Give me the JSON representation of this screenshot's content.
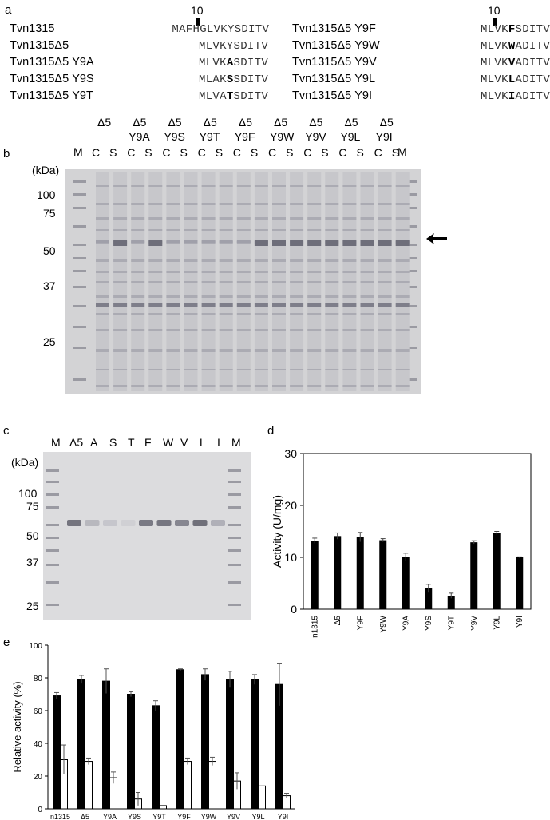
{
  "panel_a": {
    "label": "a",
    "marker": "10",
    "rows_left": [
      {
        "name": "Tvn1315",
        "pre": "MAFHGLVKY",
        "mut": "",
        "post": "SDITV"
      },
      {
        "name": "Tvn1315Δ5",
        "pre": "MLVKY",
        "mut": "",
        "post": "SDITV"
      },
      {
        "name": "Tvn1315Δ5 Y9A",
        "pre": "MLVK",
        "mut": "A",
        "post": "SDITV"
      },
      {
        "name": "Tvn1315Δ5 Y9S",
        "pre": "MLAK",
        "mut": "S",
        "post": "SDITV"
      },
      {
        "name": "Tvn1315Δ5 Y9T",
        "pre": "MLVA",
        "mut": "T",
        "post": "SDITV"
      }
    ],
    "rows_right": [
      {
        "name": "Tvn1315Δ5 Y9F",
        "pre": "MLVK",
        "mut": "F",
        "post": "SDITV"
      },
      {
        "name": "Tvn1315Δ5 Y9W",
        "pre": "MLVK",
        "mut": "W",
        "post": "ADITV"
      },
      {
        "name": "Tvn1315Δ5 Y9V",
        "pre": "MLVK",
        "mut": "V",
        "post": "ADITV"
      },
      {
        "name": "Tvn1315Δ5 Y9L",
        "pre": "MLVK",
        "mut": "L",
        "post": "ADITV"
      },
      {
        "name": "Tvn1315Δ5 Y9I",
        "pre": "MLVK",
        "mut": "I",
        "post": "ADITV"
      }
    ]
  },
  "panel_b": {
    "label": "b",
    "kda": "(kDa)",
    "marker_lane": "M",
    "groups": [
      {
        "top": "Δ5",
        "sub": ""
      },
      {
        "top": "Δ5",
        "sub": "Y9A"
      },
      {
        "top": "Δ5",
        "sub": "Y9S"
      },
      {
        "top": "Δ5",
        "sub": "Y9T"
      },
      {
        "top": "Δ5",
        "sub": "Y9F"
      },
      {
        "top": "Δ5",
        "sub": "Y9W"
      },
      {
        "top": "Δ5",
        "sub": "Y9V"
      },
      {
        "top": "Δ5",
        "sub": "Y9L"
      },
      {
        "top": "Δ5",
        "sub": "Y9I"
      }
    ],
    "fraction_labels": [
      "C",
      "S"
    ],
    "mw": [
      "100",
      "75",
      "50",
      "37",
      "25"
    ]
  },
  "panel_c": {
    "label": "c",
    "kda": "(kDa)",
    "lanes": [
      "M",
      "Δ5",
      "A",
      "S",
      "T",
      "F",
      "W",
      "V",
      "L",
      "I",
      "M"
    ],
    "mw": [
      "100",
      "75",
      "50",
      "37",
      "25"
    ]
  },
  "chart_data": [
    {
      "panel": "d",
      "type": "bar",
      "categories": [
        "n1315",
        "Δ5",
        "Y9F",
        "Y9W",
        "Y9A",
        "Y9S",
        "Y9T",
        "Y9V",
        "Y9L",
        "Y9I"
      ],
      "values": [
        13.2,
        14.1,
        13.9,
        13.3,
        10.1,
        4.0,
        2.6,
        12.9,
        14.7,
        10.0
      ],
      "errors": [
        0.5,
        0.6,
        0.9,
        0.3,
        0.7,
        0.8,
        0.5,
        0.3,
        0.3,
        0.1
      ],
      "ylabel": "Activity (U/mg)",
      "ylim": [
        0,
        30
      ],
      "yticks": [
        "0",
        "10",
        "20",
        "30"
      ],
      "color": "#000000"
    },
    {
      "panel": "e",
      "type": "bar",
      "categories": [
        "n1315",
        "Δ5",
        "Y9A",
        "Y9S",
        "Y9T",
        "Y9F",
        "Y9W",
        "Y9V",
        "Y9L",
        "Y9I"
      ],
      "series": [
        {
          "values": [
            69,
            79,
            78,
            70,
            63,
            85,
            82,
            79,
            79,
            76
          ],
          "errors": [
            2,
            2.5,
            7.5,
            1.5,
            3,
            0.5,
            3.5,
            5,
            3,
            13
          ],
          "color": "#000000"
        },
        {
          "values": [
            30,
            29,
            19,
            6,
            2,
            29,
            29,
            17,
            14,
            8
          ],
          "errors": [
            9,
            2,
            3.5,
            4,
            0,
            2,
            2.5,
            5,
            0,
            1.5
          ],
          "color": "#ffffff"
        }
      ],
      "ylabel": "Relative activity (%)",
      "ylim": [
        0,
        100
      ],
      "yticks": [
        "0",
        "20",
        "40",
        "60",
        "80",
        "100"
      ]
    }
  ]
}
